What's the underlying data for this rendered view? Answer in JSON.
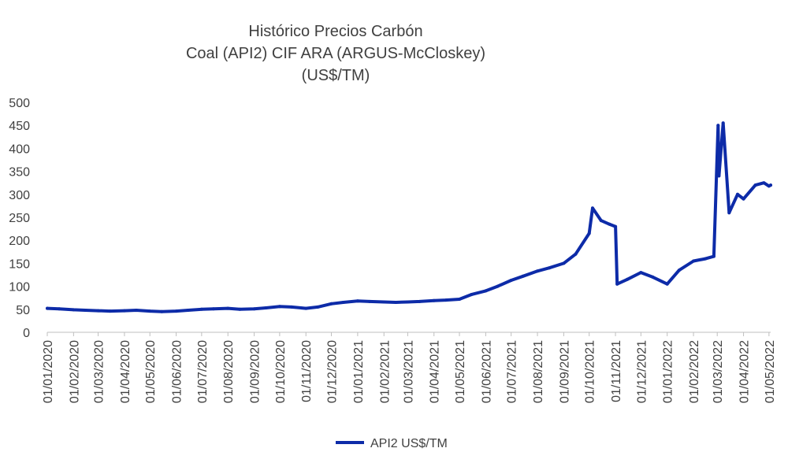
{
  "chart_data": {
    "type": "line",
    "title": [
      "Histórico Precios Carbón",
      "Coal (API2) CIF ARA (ARGUS-McCloskey)",
      "(US$/TM)"
    ],
    "ylim": [
      0,
      500
    ],
    "y_ticks": [
      0,
      50,
      100,
      150,
      200,
      250,
      300,
      350,
      400,
      450,
      500
    ],
    "grid": false,
    "legend_position": "bottom",
    "x_ticks": [
      "01/01/2020",
      "01/02/2020",
      "01/03/2020",
      "01/04/2020",
      "01/05/2020",
      "01/06/2020",
      "01/07/2020",
      "01/08/2020",
      "01/09/2020",
      "01/10/2020",
      "01/11/2020",
      "01/12/2020",
      "01/01/2021",
      "01/02/2021",
      "01/03/2021",
      "01/04/2021",
      "01/05/2021",
      "01/06/2021",
      "01/07/2021",
      "01/08/2021",
      "01/09/2021",
      "01/10/2021",
      "01/11/2021",
      "01/12/2021",
      "01/01/2022",
      "01/02/2022",
      "01/03/2022",
      "01/04/2022",
      "01/05/2022"
    ],
    "series": [
      {
        "name": "API2 US$/TM",
        "color": "#0D2BA8",
        "x": [
          "2020-01-01",
          "2020-01-15",
          "2020-02-01",
          "2020-02-15",
          "2020-03-01",
          "2020-03-15",
          "2020-04-01",
          "2020-04-15",
          "2020-05-01",
          "2020-05-15",
          "2020-06-01",
          "2020-06-15",
          "2020-07-01",
          "2020-07-15",
          "2020-08-01",
          "2020-08-15",
          "2020-09-01",
          "2020-09-15",
          "2020-10-01",
          "2020-10-15",
          "2020-11-01",
          "2020-11-15",
          "2020-12-01",
          "2020-12-15",
          "2021-01-01",
          "2021-01-15",
          "2021-02-01",
          "2021-02-15",
          "2021-03-01",
          "2021-03-15",
          "2021-04-01",
          "2021-04-15",
          "2021-05-01",
          "2021-05-15",
          "2021-06-01",
          "2021-06-15",
          "2021-07-01",
          "2021-07-15",
          "2021-08-01",
          "2021-08-15",
          "2021-09-01",
          "2021-09-15",
          "2021-10-01",
          "2021-10-05",
          "2021-10-15",
          "2021-10-25",
          "2021-11-01",
          "2021-11-03",
          "2021-11-15",
          "2021-12-01",
          "2021-12-15",
          "2022-01-01",
          "2022-01-15",
          "2022-02-01",
          "2022-02-15",
          "2022-02-25",
          "2022-03-02",
          "2022-03-03",
          "2022-03-08",
          "2022-03-15",
          "2022-03-25",
          "2022-04-01",
          "2022-04-15",
          "2022-04-25",
          "2022-05-01",
          "2022-05-03"
        ],
        "values": [
          52,
          51,
          49,
          48,
          47,
          46,
          47,
          48,
          46,
          45,
          46,
          48,
          50,
          51,
          52,
          50,
          51,
          53,
          56,
          55,
          52,
          55,
          62,
          65,
          68,
          67,
          66,
          65,
          66,
          67,
          69,
          70,
          72,
          82,
          90,
          100,
          113,
          122,
          133,
          140,
          150,
          170,
          215,
          270,
          243,
          235,
          230,
          105,
          115,
          130,
          120,
          105,
          135,
          155,
          160,
          165,
          450,
          340,
          455,
          260,
          300,
          290,
          320,
          325,
          318,
          320
        ]
      }
    ]
  }
}
